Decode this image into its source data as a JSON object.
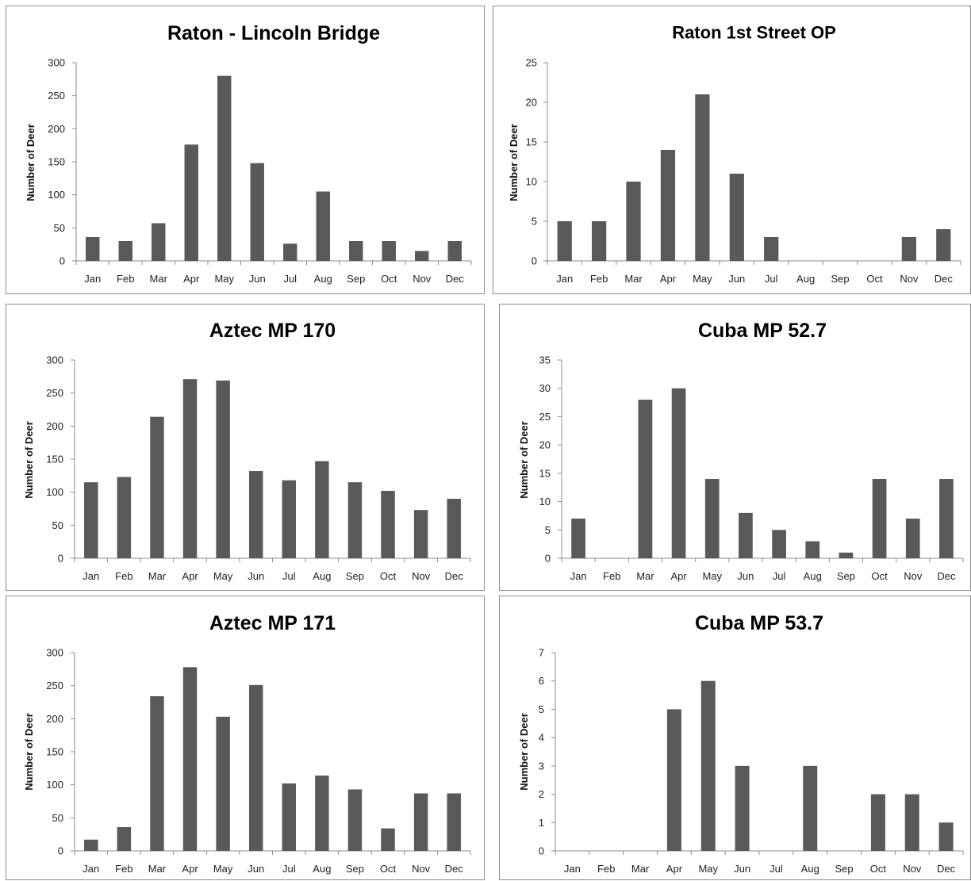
{
  "chart_data": [
    {
      "type": "bar",
      "title": "Raton - Lincoln Bridge",
      "ylabel": "Number of Deer",
      "xlabel": "",
      "categories": [
        "Jan",
        "Feb",
        "Mar",
        "Apr",
        "May",
        "Jun",
        "Jul",
        "Aug",
        "Sep",
        "Oct",
        "Nov",
        "Dec"
      ],
      "values": [
        36,
        30,
        57,
        176,
        280,
        148,
        26,
        105,
        30,
        30,
        15,
        30
      ],
      "ylim": [
        0,
        300
      ],
      "yticks": [
        0,
        50,
        100,
        150,
        200,
        250,
        300
      ],
      "grid": false,
      "bar_color": "#595959"
    },
    {
      "type": "bar",
      "title": "Raton 1st Street OP",
      "ylabel": "Number of Deer",
      "xlabel": "",
      "categories": [
        "Jan",
        "Feb",
        "Mar",
        "Apr",
        "May",
        "Jun",
        "Jul",
        "Aug",
        "Sep",
        "Oct",
        "Nov",
        "Dec"
      ],
      "values": [
        5,
        5,
        10,
        14,
        21,
        11,
        3,
        0,
        0,
        0,
        3,
        4
      ],
      "ylim": [
        0,
        25
      ],
      "yticks": [
        0,
        5,
        10,
        15,
        20,
        25
      ],
      "grid": false,
      "bar_color": "#595959"
    },
    {
      "type": "bar",
      "title": "Aztec MP 170",
      "ylabel": "Number of Deer",
      "xlabel": "",
      "categories": [
        "Jan",
        "Feb",
        "Mar",
        "Apr",
        "May",
        "Jun",
        "Jul",
        "Aug",
        "Sep",
        "Oct",
        "Nov",
        "Dec"
      ],
      "values": [
        115,
        123,
        214,
        271,
        269,
        132,
        118,
        147,
        115,
        102,
        73,
        90
      ],
      "ylim": [
        0,
        300
      ],
      "yticks": [
        0,
        50,
        100,
        150,
        200,
        250,
        300
      ],
      "grid": false,
      "bar_color": "#595959"
    },
    {
      "type": "bar",
      "title": "Cuba MP 52.7",
      "ylabel": "Number of Deer",
      "xlabel": "",
      "categories": [
        "Jan",
        "Feb",
        "Mar",
        "Apr",
        "May",
        "Jun",
        "Jul",
        "Aug",
        "Sep",
        "Oct",
        "Nov",
        "Dec"
      ],
      "values": [
        7,
        0,
        28,
        30,
        14,
        8,
        5,
        3,
        1,
        14,
        7,
        14
      ],
      "ylim": [
        0,
        35
      ],
      "yticks": [
        0,
        5,
        10,
        15,
        20,
        25,
        30,
        35
      ],
      "grid": false,
      "bar_color": "#595959"
    },
    {
      "type": "bar",
      "title": "Aztec MP 171",
      "ylabel": "Number of Deer",
      "xlabel": "",
      "categories": [
        "Jan",
        "Feb",
        "Mar",
        "Apr",
        "May",
        "Jun",
        "Jul",
        "Aug",
        "Sep",
        "Oct",
        "Nov",
        "Dec"
      ],
      "values": [
        17,
        36,
        234,
        278,
        203,
        251,
        102,
        114,
        93,
        34,
        87,
        87
      ],
      "ylim": [
        0,
        300
      ],
      "yticks": [
        0,
        50,
        100,
        150,
        200,
        250,
        300
      ],
      "grid": false,
      "bar_color": "#595959"
    },
    {
      "type": "bar",
      "title": "Cuba MP 53.7",
      "ylabel": "Number of Deer",
      "xlabel": "",
      "categories": [
        "Jan",
        "Feb",
        "Mar",
        "Apr",
        "May",
        "Jun",
        "Jul",
        "Aug",
        "Sep",
        "Oct",
        "Nov",
        "Dec"
      ],
      "values": [
        0,
        0,
        0,
        5,
        6,
        3,
        0,
        3,
        0,
        2,
        2,
        1
      ],
      "ylim": [
        0,
        7
      ],
      "yticks": [
        0,
        1,
        2,
        3,
        4,
        5,
        6,
        7
      ],
      "grid": false,
      "bar_color": "#595959"
    }
  ]
}
